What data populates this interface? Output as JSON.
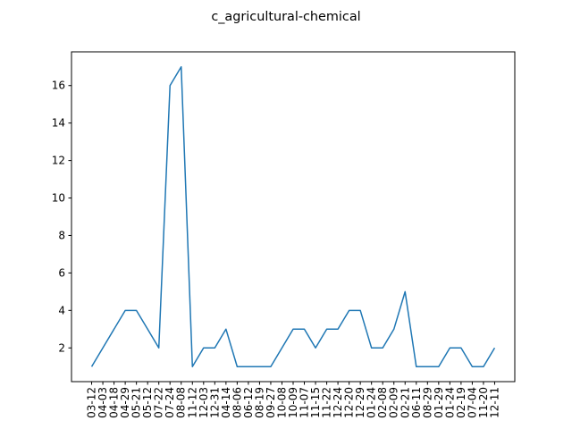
{
  "chart_data": {
    "type": "line",
    "title": "c_agricultural-chemical",
    "categories": [
      "03-12",
      "04-03",
      "04-18",
      "04-29",
      "05-21",
      "05-12",
      "07-22",
      "07-24",
      "08-08",
      "11-12",
      "12-03",
      "12-31",
      "04-14",
      "08-06",
      "06-12",
      "08-19",
      "09-27",
      "10-08",
      "10-09",
      "11-07",
      "11-15",
      "11-22",
      "12-24",
      "12-20",
      "12-29",
      "01-24",
      "02-08",
      "02-09",
      "02-21",
      "06-11",
      "08-29",
      "01-29",
      "01-24",
      "02-19",
      "07-04",
      "11-20",
      "12-11"
    ],
    "series": [
      {
        "name": "c_agricultural-chemical",
        "color": "#1f77b4",
        "values": [
          1,
          2,
          3,
          4,
          4,
          3,
          2,
          16,
          17,
          1,
          2,
          2,
          3,
          1,
          1,
          1,
          1,
          2,
          3,
          3,
          2,
          3,
          3,
          4,
          4,
          2,
          2,
          3,
          5,
          1,
          1,
          1,
          2,
          2,
          1,
          1,
          2
        ]
      }
    ],
    "ylim": [
      0.2,
      17.8
    ],
    "yticks": [
      2,
      4,
      6,
      8,
      10,
      12,
      14,
      16
    ],
    "grid": false
  }
}
